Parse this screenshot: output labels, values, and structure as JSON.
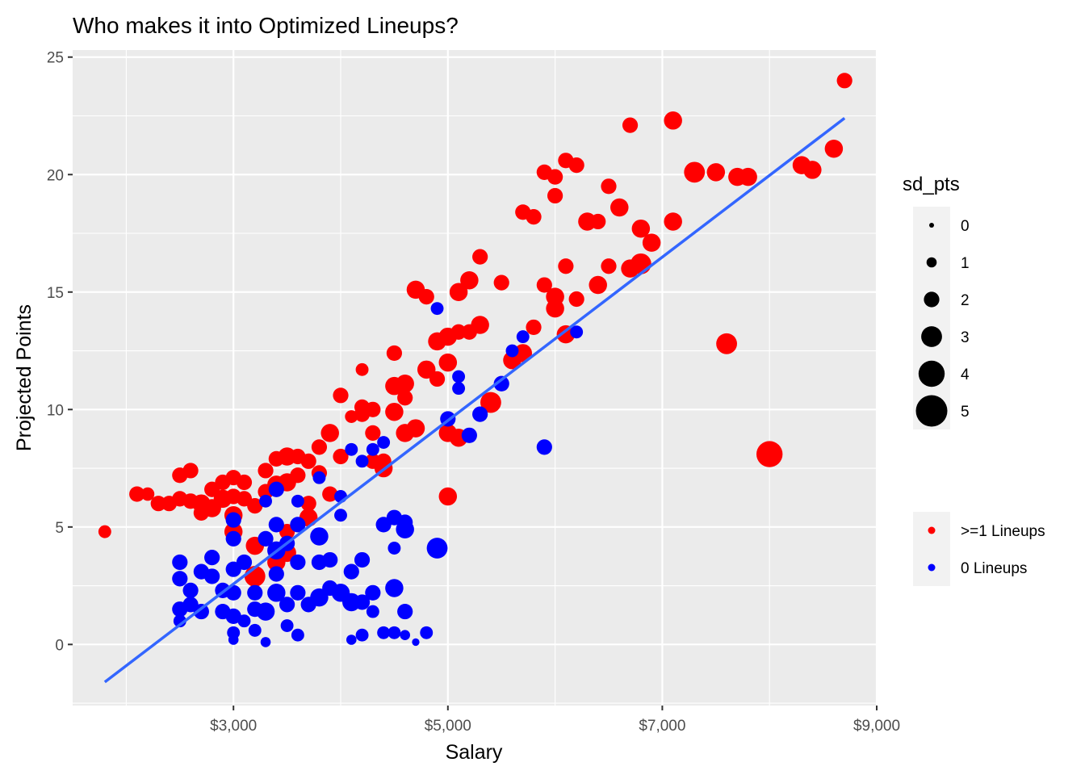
{
  "chart_data": {
    "type": "scatter",
    "title": "Who makes it into Optimized Lineups?",
    "xlabel": "Salary",
    "ylabel": "Projected Points",
    "xlim": [
      1500,
      9000
    ],
    "ylim": [
      -2.6,
      25.3
    ],
    "x_ticks": [
      3000,
      5000,
      7000,
      9000
    ],
    "x_tick_labels": [
      "$3,000",
      "$5,000",
      "$7,000",
      "$9,000"
    ],
    "y_ticks": [
      0,
      5,
      10,
      15,
      20,
      25
    ],
    "y_tick_labels": [
      "0",
      "5",
      "10",
      "15",
      "20",
      "25"
    ],
    "grid": true,
    "panel_background": "#ebebeb",
    "grid_color": "#ffffff",
    "size_legend": {
      "title": "sd_pts",
      "items": [
        {
          "label": "0",
          "value": 0
        },
        {
          "label": "1",
          "value": 1
        },
        {
          "label": "2",
          "value": 2
        },
        {
          "label": "3",
          "value": 3
        },
        {
          "label": "4",
          "value": 4
        },
        {
          "label": "5",
          "value": 5
        }
      ]
    },
    "color_legend": {
      "items": [
        {
          "label": ">=1 Lineups",
          "color": "#ff0000"
        },
        {
          "label": "0 Lineups",
          "color": "#0000ff"
        }
      ]
    },
    "trend_line": {
      "color": "#3366ff",
      "x": [
        1800,
        8700
      ],
      "y": [
        -1.6,
        22.4
      ]
    },
    "series": [
      {
        "name": ">=1 Lineups",
        "color": "#ff0000",
        "points": [
          [
            1800,
            4.8,
            1.5
          ],
          [
            2100,
            6.4,
            2
          ],
          [
            2200,
            6.4,
            1.6
          ],
          [
            2300,
            6.0,
            2
          ],
          [
            2400,
            6.0,
            2
          ],
          [
            2500,
            6.2,
            2
          ],
          [
            2500,
            7.2,
            2
          ],
          [
            2600,
            7.4,
            2
          ],
          [
            2600,
            6.1,
            2
          ],
          [
            2700,
            6.0,
            2.5
          ],
          [
            2700,
            5.6,
            2
          ],
          [
            2800,
            6.6,
            2
          ],
          [
            2800,
            5.8,
            2.5
          ],
          [
            2900,
            6.9,
            2
          ],
          [
            2900,
            6.2,
            2.5
          ],
          [
            3000,
            7.1,
            2
          ],
          [
            3000,
            6.3,
            2
          ],
          [
            3000,
            5.5,
            2.5
          ],
          [
            3000,
            4.8,
            2.5
          ],
          [
            3100,
            6.9,
            2
          ],
          [
            3100,
            6.2,
            2
          ],
          [
            3200,
            5.9,
            2
          ],
          [
            3200,
            4.2,
            2.5
          ],
          [
            3200,
            2.9,
            3
          ],
          [
            3300,
            7.4,
            2
          ],
          [
            3300,
            6.5,
            2
          ],
          [
            3400,
            7.9,
            2
          ],
          [
            3400,
            6.8,
            2.5
          ],
          [
            3400,
            3.5,
            2.5
          ],
          [
            3500,
            8.0,
            2.5
          ],
          [
            3500,
            6.9,
            2.5
          ],
          [
            3500,
            4.8,
            2
          ],
          [
            3500,
            3.9,
            2.5
          ],
          [
            3600,
            8.0,
            2
          ],
          [
            3600,
            7.2,
            2
          ],
          [
            3700,
            7.8,
            2
          ],
          [
            3700,
            6.0,
            2
          ],
          [
            3700,
            5.4,
            2.5
          ],
          [
            3800,
            8.4,
            2
          ],
          [
            3800,
            7.3,
            2
          ],
          [
            3900,
            9.0,
            2.5
          ],
          [
            3900,
            6.4,
            2
          ],
          [
            4000,
            8.0,
            2
          ],
          [
            4000,
            10.6,
            2
          ],
          [
            4100,
            9.7,
            1.5
          ],
          [
            4200,
            9.8,
            2
          ],
          [
            4200,
            11.7,
            1.5
          ],
          [
            4200,
            10.1,
            2
          ],
          [
            4300,
            10.0,
            2
          ],
          [
            4300,
            9.0,
            2
          ],
          [
            4300,
            7.8,
            2
          ],
          [
            4400,
            7.8,
            2
          ],
          [
            4400,
            7.5,
            2.5
          ],
          [
            4500,
            12.4,
            2
          ],
          [
            4500,
            11.0,
            2.5
          ],
          [
            4500,
            9.9,
            2.5
          ],
          [
            4600,
            11.1,
            2.5
          ],
          [
            4600,
            10.5,
            2
          ],
          [
            4600,
            9.0,
            2.5
          ],
          [
            4700,
            9.2,
            2.5
          ],
          [
            4700,
            15.1,
            2.5
          ],
          [
            4800,
            14.8,
            2
          ],
          [
            4800,
            11.7,
            2.5
          ],
          [
            4900,
            12.9,
            2.5
          ],
          [
            4900,
            11.3,
            2
          ],
          [
            5000,
            13.1,
            2.5
          ],
          [
            5000,
            12.0,
            2.5
          ],
          [
            5000,
            9.0,
            2.5
          ],
          [
            5000,
            6.3,
            2.5
          ],
          [
            5100,
            13.3,
            2
          ],
          [
            5100,
            8.8,
            2.5
          ],
          [
            5100,
            15.0,
            2.5
          ],
          [
            5200,
            15.5,
            2.5
          ],
          [
            5200,
            13.3,
            2
          ],
          [
            5300,
            16.5,
            2
          ],
          [
            5300,
            13.6,
            2.5
          ],
          [
            5400,
            10.3,
            3
          ],
          [
            5500,
            15.4,
            2
          ],
          [
            5600,
            12.1,
            2.5
          ],
          [
            5700,
            18.4,
            2
          ],
          [
            5700,
            12.4,
            2.5
          ],
          [
            5800,
            18.2,
            2
          ],
          [
            5800,
            13.5,
            2
          ],
          [
            5900,
            20.1,
            2
          ],
          [
            5900,
            15.3,
            2
          ],
          [
            6000,
            19.9,
            2
          ],
          [
            6000,
            19.1,
            2
          ],
          [
            6000,
            14.8,
            2.5
          ],
          [
            6000,
            14.3,
            2.5
          ],
          [
            6100,
            20.6,
            2
          ],
          [
            6100,
            16.1,
            2
          ],
          [
            6100,
            13.2,
            2.5
          ],
          [
            6200,
            20.4,
            2
          ],
          [
            6200,
            14.7,
            2
          ],
          [
            6300,
            18.0,
            2.5
          ],
          [
            6400,
            15.3,
            2.5
          ],
          [
            6400,
            18.0,
            2
          ],
          [
            6500,
            19.5,
            2
          ],
          [
            6500,
            16.1,
            2
          ],
          [
            6600,
            18.6,
            2.5
          ],
          [
            6700,
            22.1,
            2
          ],
          [
            6700,
            16.0,
            2.5
          ],
          [
            6800,
            16.2,
            3
          ],
          [
            6800,
            17.7,
            2.5
          ],
          [
            6900,
            17.1,
            2.5
          ],
          [
            7100,
            22.3,
            2.5
          ],
          [
            7100,
            18.0,
            2.5
          ],
          [
            7300,
            20.1,
            3
          ],
          [
            7500,
            20.1,
            2.5
          ],
          [
            7600,
            12.8,
            3
          ],
          [
            7700,
            19.9,
            2.5
          ],
          [
            7800,
            19.9,
            2.5
          ],
          [
            8000,
            8.1,
            4
          ],
          [
            8300,
            20.4,
            2.5
          ],
          [
            8400,
            20.2,
            2.5
          ],
          [
            8600,
            21.1,
            2.5
          ],
          [
            8700,
            24.0,
            2
          ]
        ]
      },
      {
        "name": "0 Lineups",
        "color": "#0000ff",
        "points": [
          [
            2500,
            3.5,
            2
          ],
          [
            2500,
            2.8,
            2
          ],
          [
            2500,
            1.5,
            2
          ],
          [
            2500,
            1.0,
            1.5
          ],
          [
            2600,
            2.3,
            2
          ],
          [
            2600,
            1.7,
            2
          ],
          [
            2700,
            3.1,
            2
          ],
          [
            2700,
            1.4,
            2
          ],
          [
            2800,
            2.9,
            2
          ],
          [
            2800,
            3.7,
            2
          ],
          [
            2900,
            2.3,
            2
          ],
          [
            2900,
            1.4,
            2
          ],
          [
            3000,
            5.3,
            2
          ],
          [
            3000,
            4.5,
            2
          ],
          [
            3000,
            3.2,
            2
          ],
          [
            3000,
            2.2,
            2
          ],
          [
            3000,
            1.2,
            2
          ],
          [
            3000,
            0.5,
            1.5
          ],
          [
            3000,
            0.2,
            1
          ],
          [
            3100,
            3.5,
            2
          ],
          [
            3100,
            1.0,
            1.5
          ],
          [
            3200,
            2.2,
            2
          ],
          [
            3200,
            1.5,
            2
          ],
          [
            3200,
            0.6,
            1.5
          ],
          [
            3300,
            6.1,
            1.5
          ],
          [
            3300,
            4.5,
            2
          ],
          [
            3300,
            1.4,
            2.5
          ],
          [
            3300,
            0.1,
            1
          ],
          [
            3400,
            6.6,
            2
          ],
          [
            3400,
            5.1,
            2
          ],
          [
            3400,
            4.0,
            2.5
          ],
          [
            3400,
            3.0,
            2
          ],
          [
            3400,
            2.2,
            2.5
          ],
          [
            3500,
            4.3,
            2
          ],
          [
            3500,
            1.7,
            2
          ],
          [
            3500,
            0.8,
            1.5
          ],
          [
            3600,
            6.1,
            1.5
          ],
          [
            3600,
            5.1,
            2
          ],
          [
            3600,
            3.5,
            2
          ],
          [
            3600,
            2.2,
            2
          ],
          [
            3600,
            0.4,
            1.5
          ],
          [
            3700,
            1.7,
            2
          ],
          [
            3800,
            4.6,
            2.5
          ],
          [
            3800,
            3.5,
            2
          ],
          [
            3800,
            2.0,
            2.5
          ],
          [
            3800,
            7.1,
            1.5
          ],
          [
            3900,
            3.6,
            2
          ],
          [
            3900,
            2.4,
            2
          ],
          [
            4000,
            6.3,
            1.5
          ],
          [
            4000,
            5.5,
            1.5
          ],
          [
            4000,
            2.2,
            2.5
          ],
          [
            4100,
            8.3,
            1.5
          ],
          [
            4100,
            3.1,
            2
          ],
          [
            4100,
            1.8,
            2.5
          ],
          [
            4100,
            0.2,
            1
          ],
          [
            4200,
            7.8,
            1.5
          ],
          [
            4200,
            3.6,
            2
          ],
          [
            4200,
            1.8,
            2
          ],
          [
            4200,
            0.4,
            1.5
          ],
          [
            4300,
            8.3,
            1.5
          ],
          [
            4300,
            2.2,
            2
          ],
          [
            4300,
            1.4,
            1.5
          ],
          [
            4400,
            8.6,
            1.5
          ],
          [
            4400,
            5.1,
            2
          ],
          [
            4400,
            0.5,
            1.5
          ],
          [
            4500,
            5.4,
            2
          ],
          [
            4500,
            4.1,
            1.5
          ],
          [
            4500,
            2.4,
            2.5
          ],
          [
            4500,
            0.5,
            1.5
          ],
          [
            4600,
            5.2,
            2
          ],
          [
            4600,
            4.9,
            2.5
          ],
          [
            4600,
            1.4,
            2
          ],
          [
            4600,
            0.4,
            1
          ],
          [
            4700,
            0.1,
            0.5
          ],
          [
            4800,
            0.5,
            1.5
          ],
          [
            4900,
            14.3,
            1.5
          ],
          [
            4900,
            4.1,
            3
          ],
          [
            5000,
            9.6,
            2
          ],
          [
            5100,
            11.4,
            1.5
          ],
          [
            5100,
            10.9,
            1.5
          ],
          [
            5200,
            8.9,
            2
          ],
          [
            5300,
            9.8,
            2
          ],
          [
            5500,
            11.1,
            2
          ],
          [
            5600,
            12.5,
            1.5
          ],
          [
            5700,
            13.1,
            1.5
          ],
          [
            5900,
            8.4,
            2
          ],
          [
            6200,
            13.3,
            1.5
          ]
        ]
      }
    ]
  }
}
